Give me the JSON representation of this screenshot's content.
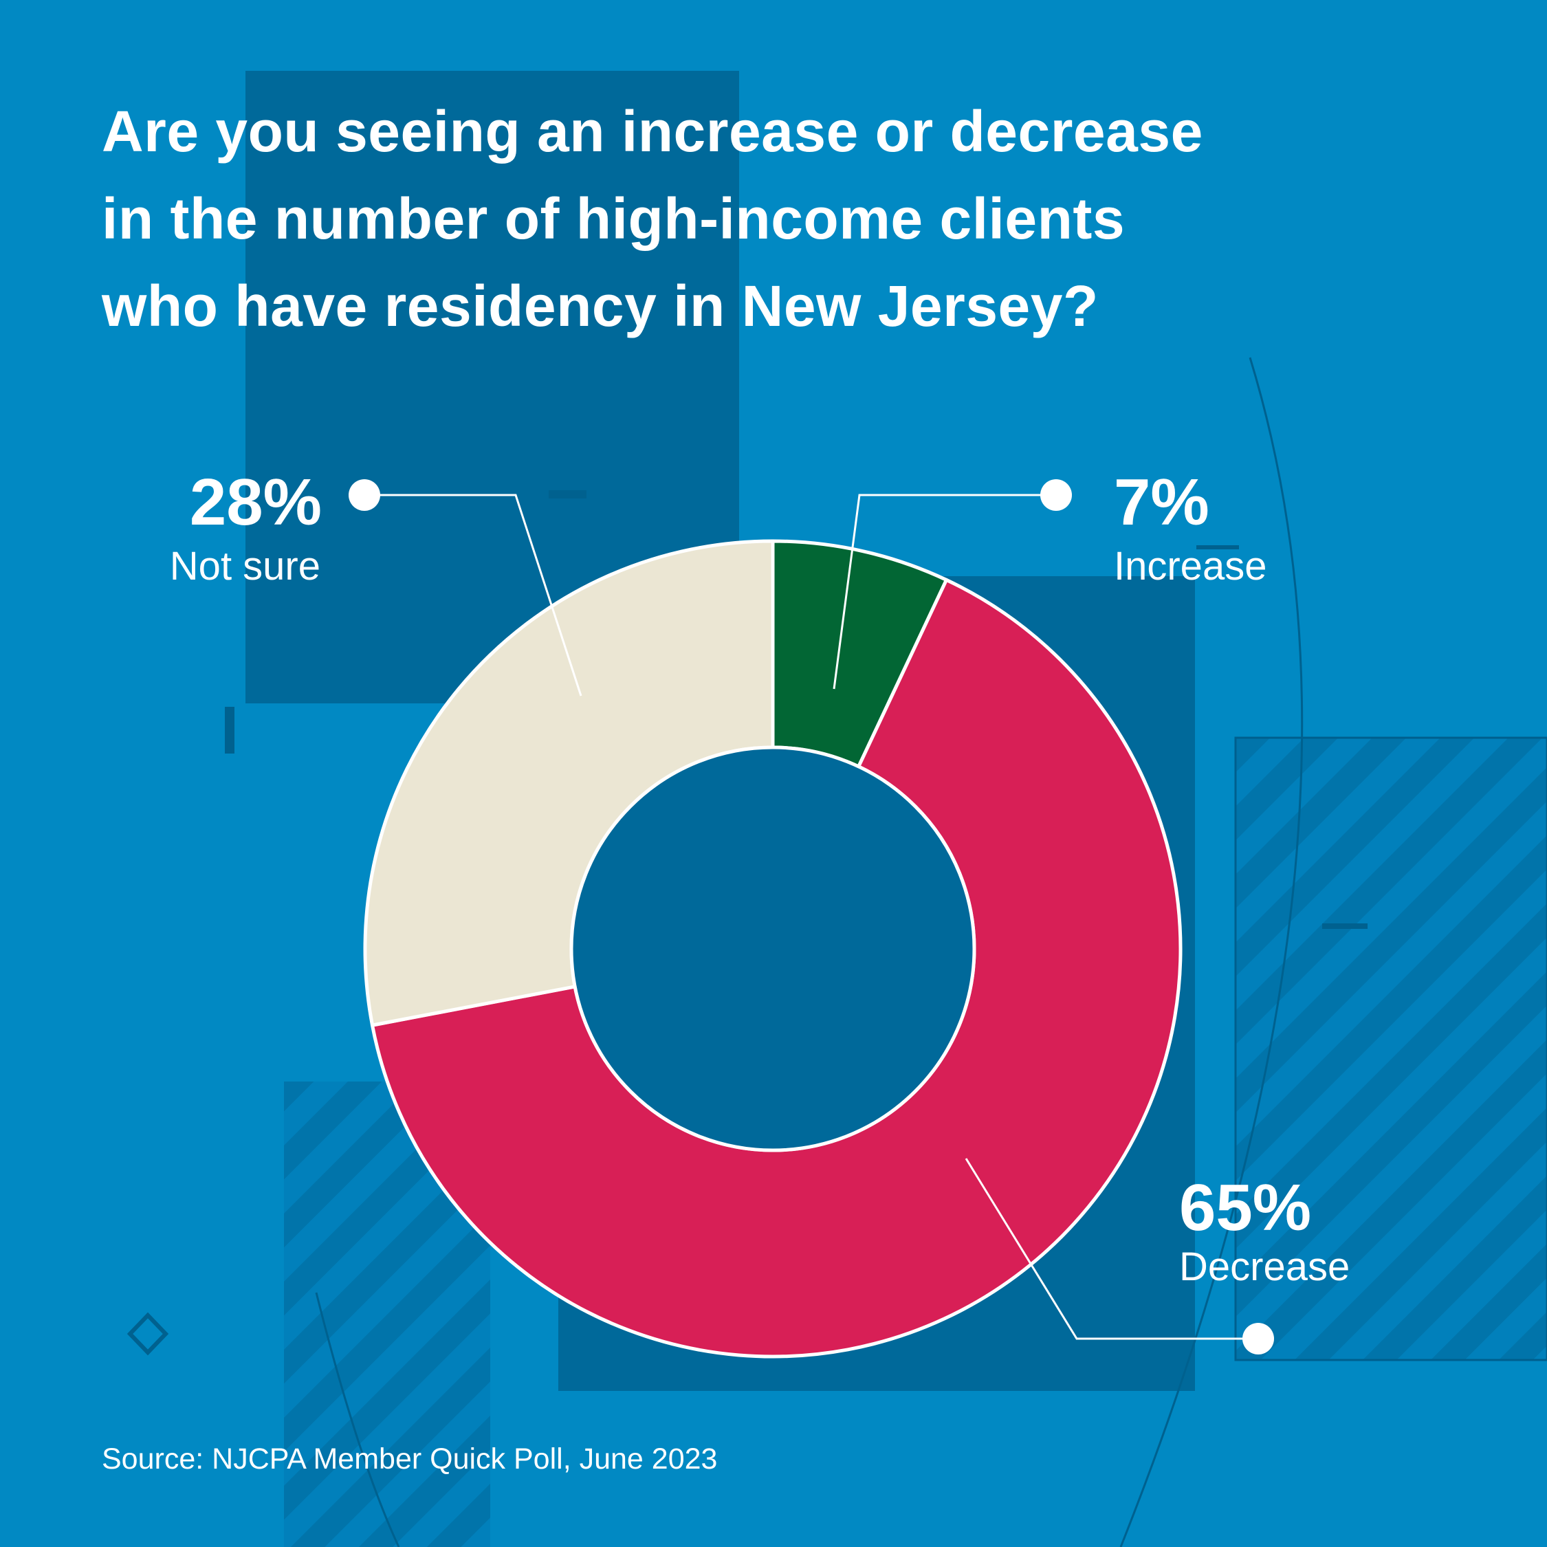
{
  "title_lines": [
    "Are you seeing an increase or decrease",
    "in the number of high-income clients",
    "who have residency in New Jersey?"
  ],
  "source": "Source: NJCPA Member Quick Poll, June 2023",
  "colors": {
    "background": "#0189c3",
    "panel": "#00699a",
    "increase": "#026634",
    "decrease": "#d81f56",
    "not_sure": "#ebe6d3",
    "outline": "#ffffff"
  },
  "chart_data": {
    "type": "pie",
    "donut": true,
    "title": "Are you seeing an increase or decrease in the number of high-income clients who have residency in New Jersey?",
    "unit": "%",
    "slices": [
      {
        "label": "Increase",
        "value": 7,
        "value_label": "7%",
        "color": "#026634"
      },
      {
        "label": "Decrease",
        "value": 65,
        "value_label": "65%",
        "color": "#d81f56"
      },
      {
        "label": "Not sure",
        "value": 28,
        "value_label": "28%",
        "color": "#ebe6d3"
      }
    ]
  }
}
